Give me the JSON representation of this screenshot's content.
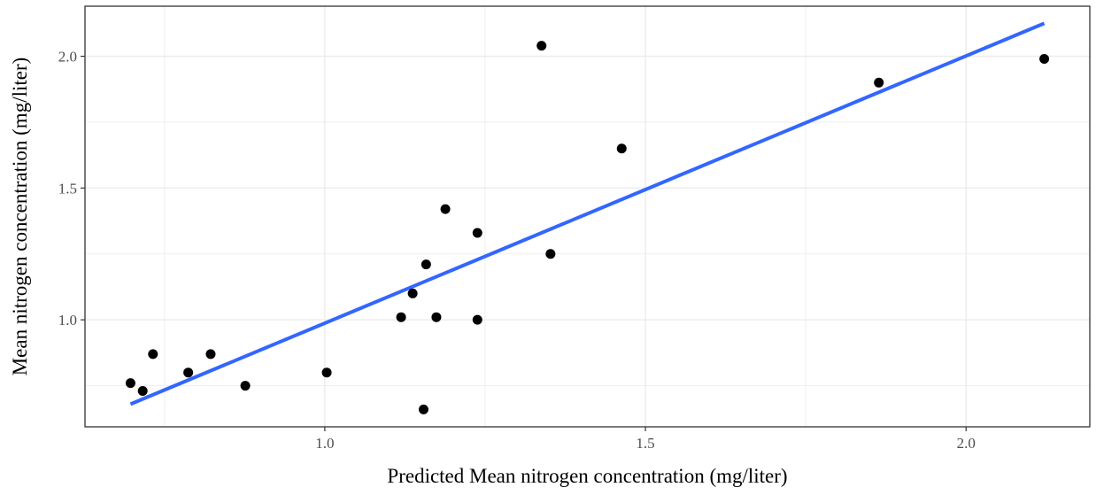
{
  "chart_data": {
    "type": "scatter",
    "title": "",
    "xlabel": "Predicted Mean nitrogen concentration (mg/liter)",
    "ylabel": "Mean nitrogen concentration (mg/liter)",
    "xlim": [
      0.626,
      2.193
    ],
    "ylim": [
      0.594,
      2.19
    ],
    "x_ticks": [
      1.0,
      1.5,
      2.0
    ],
    "x_tick_labels": [
      "1.0",
      "1.5",
      "2.0"
    ],
    "y_ticks": [
      1.0,
      1.5,
      2.0
    ],
    "y_tick_labels": [
      "1.0",
      "1.5",
      "2.0"
    ],
    "grid": true,
    "legend": "none",
    "points": [
      {
        "x": 0.697,
        "y": 0.76
      },
      {
        "x": 0.716,
        "y": 0.73
      },
      {
        "x": 0.732,
        "y": 0.87
      },
      {
        "x": 0.787,
        "y": 0.8
      },
      {
        "x": 0.822,
        "y": 0.87
      },
      {
        "x": 0.876,
        "y": 0.75
      },
      {
        "x": 1.003,
        "y": 0.8
      },
      {
        "x": 1.119,
        "y": 1.01
      },
      {
        "x": 1.137,
        "y": 1.1
      },
      {
        "x": 1.154,
        "y": 0.66
      },
      {
        "x": 1.158,
        "y": 1.21
      },
      {
        "x": 1.174,
        "y": 1.01
      },
      {
        "x": 1.188,
        "y": 1.42
      },
      {
        "x": 1.238,
        "y": 1.33
      },
      {
        "x": 1.238,
        "y": 1.0
      },
      {
        "x": 1.338,
        "y": 2.04
      },
      {
        "x": 1.352,
        "y": 1.25
      },
      {
        "x": 1.463,
        "y": 1.65
      },
      {
        "x": 1.864,
        "y": 1.9
      },
      {
        "x": 2.122,
        "y": 1.99
      }
    ],
    "fit_line": {
      "x": [
        0.697,
        2.122
      ],
      "y": [
        0.68,
        2.125
      ]
    },
    "colors": {
      "points": "#000000",
      "fit_line": "#3366ff",
      "grid": "#ebebeb",
      "panel_border": "#333333",
      "tick_label": "#4d4d4d"
    }
  }
}
